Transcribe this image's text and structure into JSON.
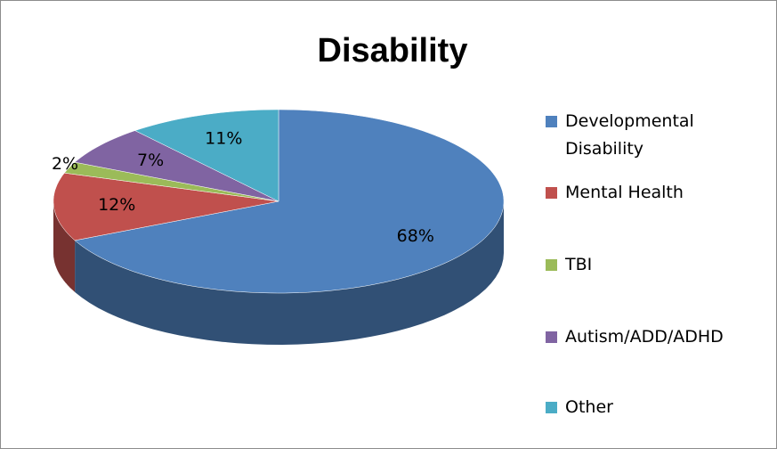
{
  "chart_data": {
    "type": "pie",
    "title": "Disability",
    "categories": [
      "Developmental Disability",
      "Mental Health",
      "TBI",
      "Autism/ADD/ADHD",
      "Other"
    ],
    "values": [
      68,
      12,
      2,
      7,
      11
    ],
    "value_labels": [
      "68%",
      "12%",
      "2%",
      "7%",
      "11%"
    ],
    "colors": [
      "#4f81bd",
      "#c0504d",
      "#9bbb59",
      "#8064a2",
      "#4bacc6"
    ],
    "legend": "right"
  }
}
